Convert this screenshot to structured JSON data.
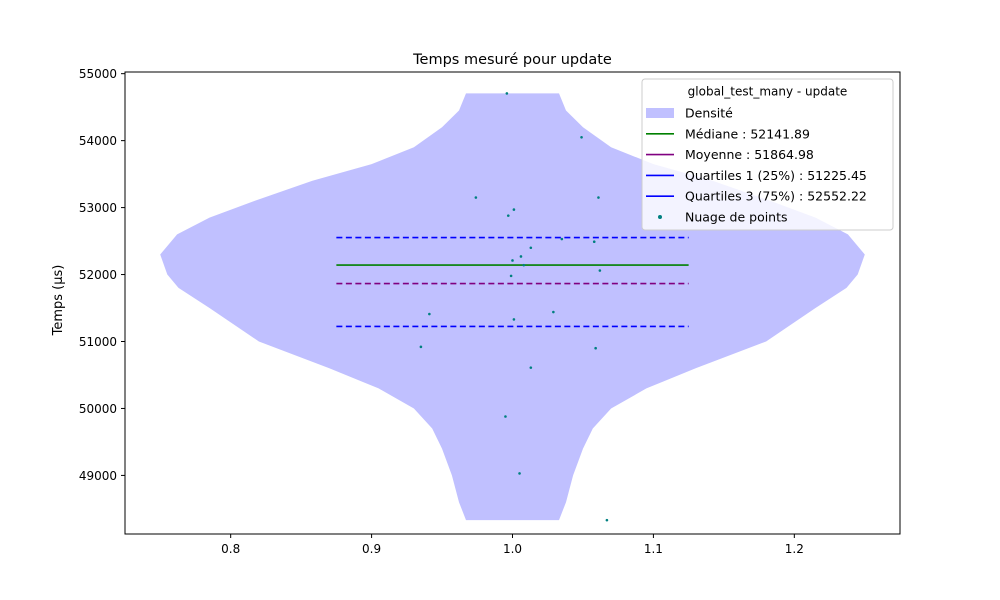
{
  "chart_data": {
    "type": "violin",
    "title": "Temps mesuré pour update",
    "xlabel": "",
    "ylabel": "Temps (µs)",
    "xlim": [
      0.725,
      1.275
    ],
    "ylim": [
      48125,
      55025
    ],
    "x_ticks": [
      0.8,
      0.9,
      1.0,
      1.1,
      1.2
    ],
    "x_tick_labels": [
      "0.8",
      "0.9",
      "1.0",
      "1.1",
      "1.2"
    ],
    "y_ticks": [
      49000,
      50000,
      51000,
      52000,
      53000,
      54000,
      55000
    ],
    "y_tick_labels": [
      "49000",
      "50000",
      "51000",
      "52000",
      "53000",
      "54000",
      "55000"
    ],
    "grid": false,
    "legend": {
      "title": "global_test_many - update",
      "placement": "top-right",
      "entries": [
        {
          "label": "Densité",
          "kind": "patch",
          "color": "#c0c0ff"
        },
        {
          "label": "Médiane : 52141.89",
          "kind": "line",
          "color": "#008000",
          "dash": "solid"
        },
        {
          "label": "Moyenne : 51864.98",
          "kind": "line",
          "color": "#800080",
          "dash": "solid"
        },
        {
          "label": "Quartiles 1 (25%) : 51225.45",
          "kind": "line",
          "color": "#0000ff",
          "dash": "solid"
        },
        {
          "label": "Quartiles 3 (75%) : 52552.22",
          "kind": "line",
          "color": "#0000ff",
          "dash": "solid"
        },
        {
          "label": "Nuage de points",
          "kind": "marker",
          "color": "#008080"
        }
      ]
    },
    "violin": {
      "center": 1.0,
      "color": "#c0c0ff",
      "profile": [
        {
          "y": 48332,
          "half_width": 0.033
        },
        {
          "y": 48600,
          "half_width": 0.038
        },
        {
          "y": 49000,
          "half_width": 0.043
        },
        {
          "y": 49400,
          "half_width": 0.05
        },
        {
          "y": 49700,
          "half_width": 0.057
        },
        {
          "y": 50000,
          "half_width": 0.07
        },
        {
          "y": 50300,
          "half_width": 0.095
        },
        {
          "y": 50600,
          "half_width": 0.13
        },
        {
          "y": 51000,
          "half_width": 0.18
        },
        {
          "y": 51500,
          "half_width": 0.215
        },
        {
          "y": 51800,
          "half_width": 0.237
        },
        {
          "y": 52000,
          "half_width": 0.245
        },
        {
          "y": 52300,
          "half_width": 0.25
        },
        {
          "y": 52600,
          "half_width": 0.238
        },
        {
          "y": 52850,
          "half_width": 0.215
        },
        {
          "y": 53100,
          "half_width": 0.183
        },
        {
          "y": 53400,
          "half_width": 0.142
        },
        {
          "y": 53650,
          "half_width": 0.1
        },
        {
          "y": 53900,
          "half_width": 0.07
        },
        {
          "y": 54200,
          "half_width": 0.05
        },
        {
          "y": 54450,
          "half_width": 0.038
        },
        {
          "y": 54705,
          "half_width": 0.033
        }
      ]
    },
    "stat_lines": [
      {
        "name": "Quartiles 3 (75%)",
        "y": 52552.22,
        "x_range": [
          0.875,
          1.125
        ],
        "color": "#0000ff",
        "dash": "dashed"
      },
      {
        "name": "Médiane",
        "y": 52141.89,
        "x_range": [
          0.875,
          1.125
        ],
        "color": "#008000",
        "dash": "solid"
      },
      {
        "name": "Moyenne",
        "y": 51864.98,
        "x_range": [
          0.875,
          1.125
        ],
        "color": "#800080",
        "dash": "dashed"
      },
      {
        "name": "Quartiles 1 (25%)",
        "y": 51225.45,
        "x_range": [
          0.875,
          1.125
        ],
        "color": "#0000ff",
        "dash": "dashed"
      }
    ],
    "points": [
      {
        "x": 0.996,
        "y": 54705
      },
      {
        "x": 1.049,
        "y": 54050
      },
      {
        "x": 0.974,
        "y": 53150
      },
      {
        "x": 1.061,
        "y": 53150
      },
      {
        "x": 1.001,
        "y": 52970
      },
      {
        "x": 0.997,
        "y": 52880
      },
      {
        "x": 1.035,
        "y": 52530
      },
      {
        "x": 1.058,
        "y": 52490
      },
      {
        "x": 1.013,
        "y": 52400
      },
      {
        "x": 1.006,
        "y": 52270
      },
      {
        "x": 1.0,
        "y": 52210
      },
      {
        "x": 1.008,
        "y": 52140
      },
      {
        "x": 1.062,
        "y": 52060
      },
      {
        "x": 0.999,
        "y": 51980
      },
      {
        "x": 1.029,
        "y": 51440
      },
      {
        "x": 0.941,
        "y": 51410
      },
      {
        "x": 1.001,
        "y": 51330
      },
      {
        "x": 0.935,
        "y": 50920
      },
      {
        "x": 1.059,
        "y": 50900
      },
      {
        "x": 1.013,
        "y": 50610
      },
      {
        "x": 0.995,
        "y": 49880
      },
      {
        "x": 1.005,
        "y": 49030
      },
      {
        "x": 1.067,
        "y": 48332
      }
    ],
    "point_color": "#008080"
  }
}
